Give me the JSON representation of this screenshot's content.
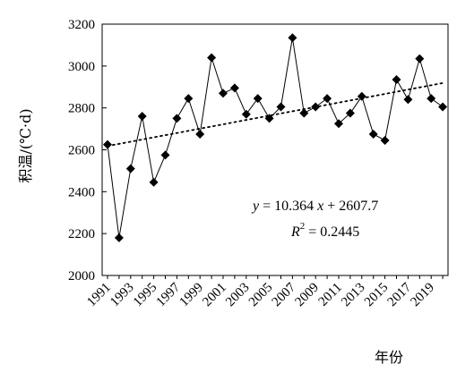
{
  "chart_data": {
    "type": "line",
    "xlabel": "年份",
    "ylabel": "积温/(℃·d)",
    "ylim": [
      2000,
      3200
    ],
    "yticks": [
      2000,
      2200,
      2400,
      2600,
      2800,
      3000,
      3200
    ],
    "xlim": [
      1991,
      2020
    ],
    "xtick_labels": [
      "1991",
      "1993",
      "1995",
      "1997",
      "1999",
      "2001",
      "2003",
      "2005",
      "2007",
      "2009",
      "2011",
      "2013",
      "2015",
      "2017",
      "2019"
    ],
    "grid": false,
    "series": [
      {
        "marker": "diamond",
        "color": "#000000",
        "x": [
          1991,
          1992,
          1993,
          1994,
          1995,
          1996,
          1997,
          1998,
          1999,
          2000,
          2001,
          2002,
          2003,
          2004,
          2005,
          2006,
          2007,
          2008,
          2009,
          2010,
          2011,
          2012,
          2013,
          2014,
          2015,
          2016,
          2017,
          2018,
          2019,
          2020
        ],
        "values": [
          2625,
          2180,
          2510,
          2760,
          2445,
          2575,
          2750,
          2845,
          2675,
          3040,
          2870,
          2895,
          2770,
          2845,
          2750,
          2805,
          3135,
          2775,
          2805,
          2845,
          2725,
          2775,
          2855,
          2675,
          2645,
          2935,
          2840,
          3035,
          2845,
          2805
        ]
      }
    ],
    "trendline": {
      "style": "dotted",
      "slope": 10.364,
      "intercept": 2607.7
    },
    "annotations": {
      "equation_y": "y",
      "equation_rhs": " = 10.364x + 2607.7",
      "r2_label": "R",
      "r2_sup": "2",
      "r2_rhs": " = 0.2445"
    }
  }
}
